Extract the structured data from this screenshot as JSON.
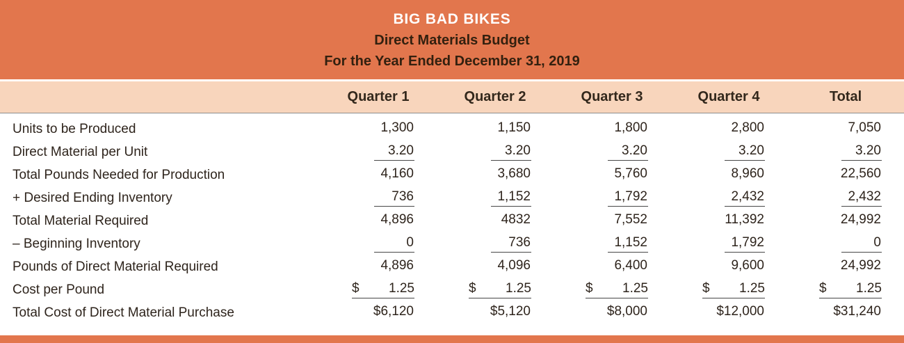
{
  "header": {
    "company": "BIG BAD BIKES",
    "title": "Direct Materials Budget",
    "period": "For the Year Ended December 31, 2019"
  },
  "columns": [
    "",
    "Quarter 1",
    "Quarter 2",
    "Quarter 3",
    "Quarter 4",
    "Total"
  ],
  "rows": [
    {
      "label": "Units to be Produced",
      "values": [
        "1,300",
        "1,150",
        "1,800",
        "2,800",
        "7,050"
      ],
      "underline": false,
      "dollar": "none"
    },
    {
      "label": "Direct Material per Unit",
      "values": [
        "3.20",
        "3.20",
        "3.20",
        "3.20",
        "3.20"
      ],
      "underline": true,
      "dollar": "none"
    },
    {
      "label": "Total Pounds Needed for Production",
      "values": [
        "4,160",
        "3,680",
        "5,760",
        "8,960",
        "22,560"
      ],
      "underline": false,
      "dollar": "none"
    },
    {
      "label": "+ Desired Ending Inventory",
      "values": [
        "736",
        "1,152",
        "1,792",
        "2,432",
        "2,432"
      ],
      "underline": true,
      "dollar": "none"
    },
    {
      "label": "Total Material Required",
      "values": [
        "4,896",
        "4832",
        "7,552",
        "11,392",
        "24,992"
      ],
      "underline": false,
      "dollar": "none"
    },
    {
      "label": "– Beginning Inventory",
      "values": [
        "0",
        "736",
        "1,152",
        "1,792",
        "0"
      ],
      "underline": true,
      "dollar": "none"
    },
    {
      "label": "Pounds of Direct Material Required",
      "values": [
        "4,896",
        "4,096",
        "6,400",
        "9,600",
        "24,992"
      ],
      "underline": false,
      "dollar": "none"
    },
    {
      "label": "Cost per Pound",
      "values": [
        "1.25",
        "1.25",
        "1.25",
        "1.25",
        "1.25"
      ],
      "underline": true,
      "dollar": "split"
    },
    {
      "label": "Total Cost of Direct Material Purchase",
      "values": [
        "6,120",
        "5,120",
        "8,000",
        "12,000",
        "31,240"
      ],
      "underline": false,
      "dollar": "tight"
    }
  ],
  "colors": {
    "header_bg": "#e2764d",
    "subheader_bg": "#f8d5bc",
    "title_color": "#ffffff",
    "subtitle_color": "#33200f",
    "text_color": "#2e241c",
    "rule_color": "#474747"
  }
}
